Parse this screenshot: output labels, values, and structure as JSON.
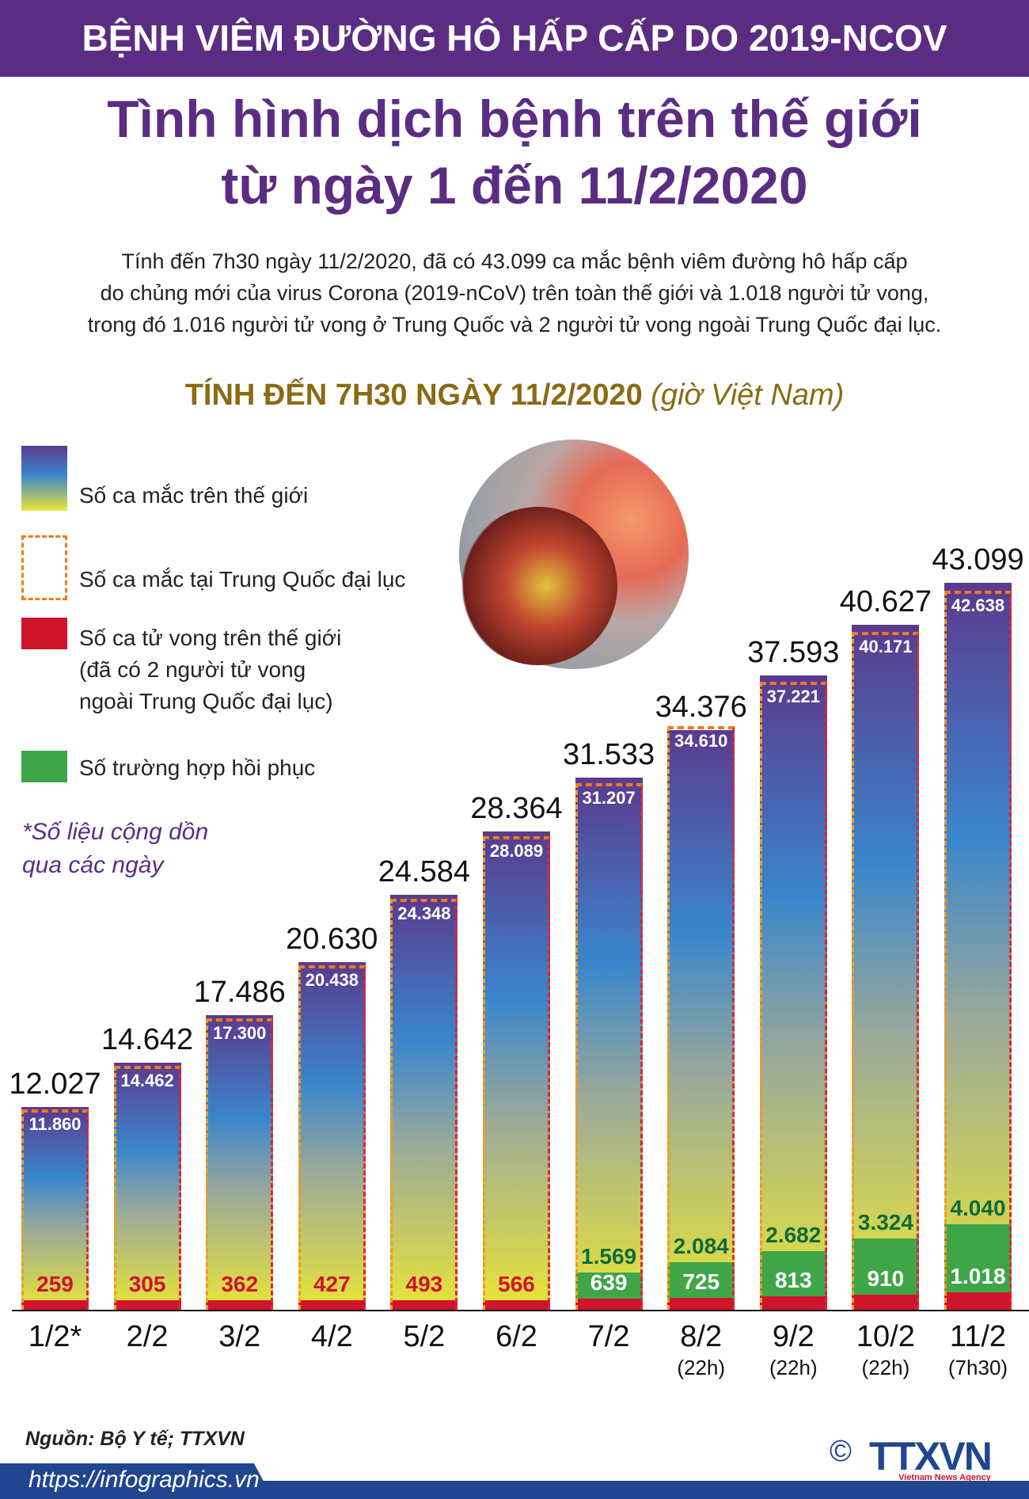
{
  "header": "BỆNH VIÊM ĐƯỜNG HÔ HẤP CẤP DO 2019-NCOV",
  "title_line1": "Tình hình dịch bệnh trên thế giới",
  "title_line2": "từ ngày 1 đến 11/2/2020",
  "intro": [
    "Tính đến 7h30 ngày 11/2/2020, đã có 43.099 ca mắc bệnh viêm đường hô hấp cấp",
    "do chủng mới của virus Corona (2019-nCoV) trên toàn thế giới và 1.018 người tử vong,",
    "trong đó 1.016 người tử vong ở Trung Quốc và 2 người tử vong ngoài Trung Quốc đại lục."
  ],
  "subtitle": "TÍNH ĐẾN 7H30 NGÀY 11/2/2020",
  "subtitle_note": "(giờ Việt Nam)",
  "legend": {
    "world": "Số ca mắc trên thế giới",
    "china": "Số ca mắc tại Trung Quốc đại lục",
    "deaths": [
      "Số ca tử vong trên thế giới",
      "(đã có 2 người tử vong",
      "ngoài Trung Quốc đại lục)"
    ],
    "recovered": "Số trường hợp hồi phục"
  },
  "note": [
    "*Số liệu cộng dồn",
    "qua các ngày"
  ],
  "chart_data": {
    "type": "bar",
    "categories": [
      "1/2*",
      "2/2",
      "3/2",
      "4/2",
      "5/2",
      "6/2",
      "7/2",
      "8/2",
      "9/2",
      "10/2",
      "11/2"
    ],
    "sublabels": [
      "",
      "",
      "",
      "",
      "",
      "",
      "",
      "(22h)",
      "(22h)",
      "(22h)",
      "(7h30)"
    ],
    "series": [
      {
        "name": "Số ca mắc trên thế giới",
        "values": [
          12027,
          14642,
          17486,
          20630,
          24584,
          28364,
          31533,
          34376,
          37593,
          40627,
          43099
        ],
        "labels": [
          "12.027",
          "14.642",
          "17.486",
          "20.630",
          "24.584",
          "28.364",
          "31.533",
          "34.376",
          "37.593",
          "40.627",
          "43.099"
        ]
      },
      {
        "name": "Số ca mắc tại Trung Quốc đại lục",
        "values": [
          11860,
          14462,
          17300,
          20438,
          24348,
          28089,
          31207,
          34610,
          37221,
          40171,
          42638
        ],
        "labels": [
          "11.860",
          "14.462",
          "17.300",
          "20.438",
          "24.348",
          "28.089",
          "31.207",
          "34.610",
          "37.221",
          "40.171",
          "42.638"
        ]
      },
      {
        "name": "Số ca tử vong trên thế giới",
        "values": [
          259,
          305,
          362,
          427,
          493,
          566,
          639,
          725,
          813,
          910,
          1018
        ],
        "labels": [
          "259",
          "305",
          "362",
          "427",
          "493",
          "566",
          "639",
          "725",
          "813",
          "910",
          "1.018"
        ]
      },
      {
        "name": "Số trường hợp hồi phục",
        "values": [
          null,
          null,
          null,
          null,
          null,
          null,
          1569,
          2084,
          2682,
          3324,
          4040
        ],
        "labels": [
          "",
          "",
          "",
          "",
          "",
          "",
          "1.569",
          "2.084",
          "2.682",
          "3.324",
          "4.040"
        ]
      }
    ],
    "colors": {
      "world_top": "#5b3a8e",
      "world_bottom": "#e9e537",
      "china": "#f07a1e",
      "deaths": "#d0142c",
      "recovered": "#3fa648"
    }
  },
  "footer": {
    "source": "Nguồn: Bộ Y tế; TTXVN",
    "url": "https://infographics.vn",
    "logo": "TTXVN",
    "logo_sub": "Vietnam News Agency",
    "copyright": "©"
  }
}
